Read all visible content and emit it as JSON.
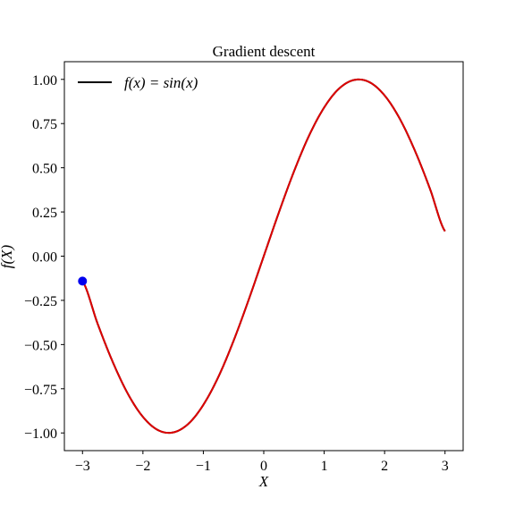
{
  "chart_data": {
    "type": "line",
    "title": "Gradient descent",
    "xlabel": "X",
    "ylabel": "f(X)",
    "xlim": [
      -3.3,
      3.3
    ],
    "ylim": [
      -1.1,
      1.1
    ],
    "xticks": [
      -3,
      -2,
      -1,
      0,
      1,
      2,
      3
    ],
    "xtick_labels": [
      "−3",
      "−2",
      "−1",
      "0",
      "1",
      "2",
      "3"
    ],
    "yticks": [
      1.0,
      0.75,
      0.5,
      0.25,
      0.0,
      -0.25,
      -0.5,
      -0.75,
      -1.0
    ],
    "ytick_labels": [
      "1.00",
      "0.75",
      "0.50",
      "0.25",
      "0.00",
      "−0.25",
      "−0.50",
      "−0.75",
      "−1.00"
    ],
    "grid": false,
    "legend_position": "top-left",
    "legend_label": "f(x) = sin(x)",
    "series": [
      {
        "name": "f(x) = sin(x)",
        "color": "#000000",
        "legend_color": "#000000",
        "x": [
          -3.0,
          -2.75,
          -2.5,
          -2.25,
          -2.0,
          -1.75,
          -1.5,
          -1.25,
          -1.0,
          -0.75,
          -0.5,
          -0.25,
          0.0,
          0.25,
          0.5,
          0.75,
          1.0,
          1.25,
          1.5,
          1.75,
          2.0,
          2.25,
          2.5,
          2.75,
          3.0
        ],
        "y": [
          -0.141,
          -0.382,
          -0.598,
          -0.778,
          -0.909,
          -0.984,
          -0.997,
          -0.949,
          -0.841,
          -0.682,
          -0.479,
          -0.247,
          0.0,
          0.247,
          0.479,
          0.682,
          0.841,
          0.949,
          0.997,
          0.984,
          0.909,
          0.778,
          0.598,
          0.382,
          0.141
        ]
      },
      {
        "color": "#dd0000",
        "x": [
          -3.0,
          -2.75,
          -2.5,
          -2.25,
          -2.0,
          -1.75,
          -1.5,
          -1.25,
          -1.0,
          -0.75,
          -0.5,
          -0.25,
          0.0,
          0.25,
          0.5,
          0.75,
          1.0,
          1.25,
          1.5,
          1.75,
          2.0,
          2.25,
          2.5,
          2.75,
          3.0
        ],
        "y": [
          -0.141,
          -0.382,
          -0.598,
          -0.778,
          -0.909,
          -0.984,
          -0.997,
          -0.949,
          -0.841,
          -0.682,
          -0.479,
          -0.247,
          0.0,
          0.247,
          0.479,
          0.682,
          0.841,
          0.949,
          0.997,
          0.984,
          0.909,
          0.778,
          0.598,
          0.382,
          0.141
        ]
      }
    ],
    "points": [
      {
        "x": -3.0,
        "y": -0.141,
        "color": "#0000ee"
      }
    ]
  }
}
